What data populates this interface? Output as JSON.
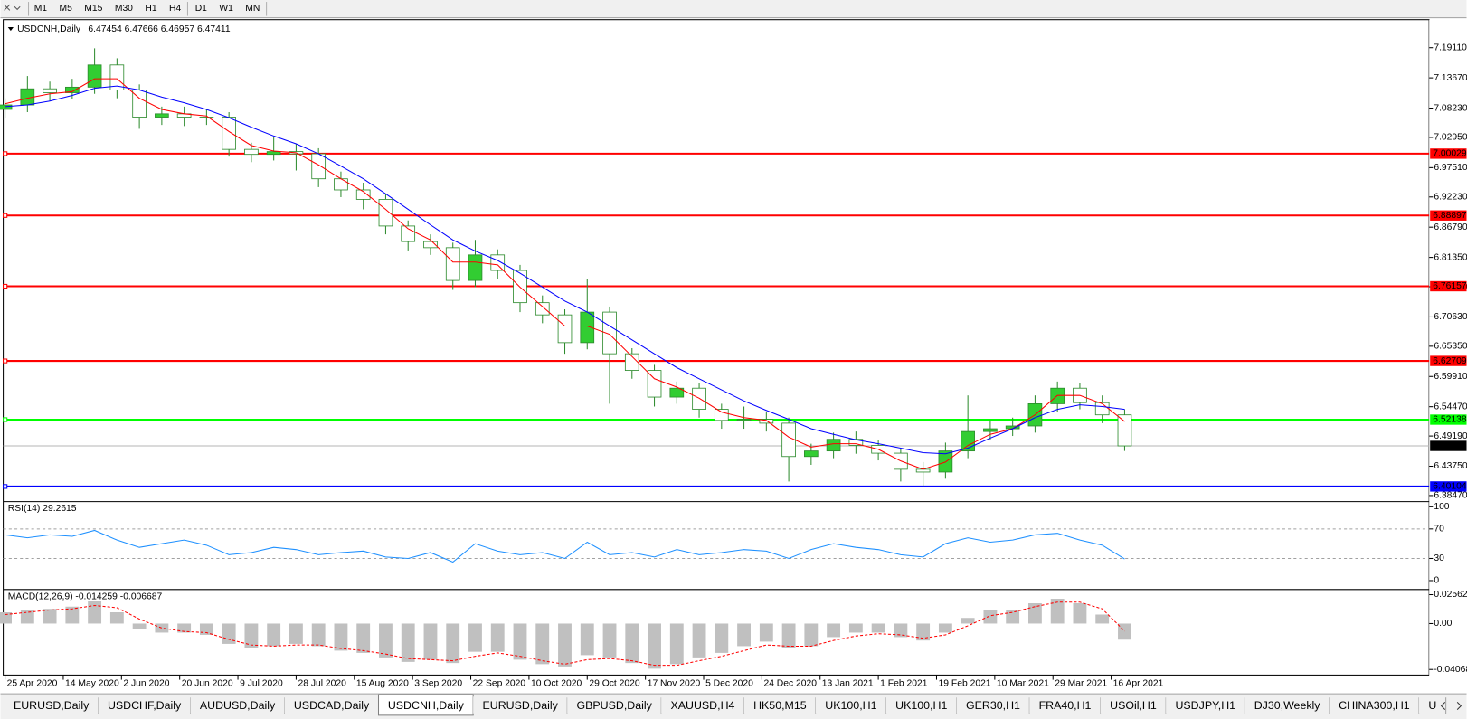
{
  "toolbar": {
    "timeframe_groups": [
      [
        "M1",
        "M5",
        "M15",
        "M30",
        "H1",
        "H4"
      ],
      [
        "D1",
        "W1",
        "MN"
      ]
    ]
  },
  "tabs": {
    "items": [
      "EURUSD,Daily",
      "USDCHF,Daily",
      "AUDUSD,Daily",
      "USDCAD,Daily",
      "USDCNH,Daily",
      "EURUSD,Daily",
      "GBPUSD,Daily",
      "XAUUSD,H4",
      "HK50,M15",
      "UK100,H1",
      "UK100,H1",
      "GER30,H1",
      "FRA40,H1",
      "USOil,H1",
      "USDJPY,H1",
      "DJ30,Weekly",
      "CHINA300,H1",
      "U"
    ],
    "active": 4
  },
  "chart_data": [
    {
      "type": "candlestick",
      "title": "USDCNH,Daily",
      "quote": "6.47454 6.47666 6.46957 6.47411",
      "x": [
        0,
        5,
        10,
        15,
        20,
        25,
        30,
        35,
        40,
        45,
        50,
        55,
        60,
        65,
        70,
        75,
        80,
        85,
        90,
        95,
        100,
        105,
        110,
        115,
        120,
        125,
        130,
        135,
        140,
        145,
        150,
        155,
        160,
        165,
        170,
        175,
        180,
        185,
        190,
        195,
        200,
        205,
        210,
        215,
        220,
        225,
        230,
        235,
        240,
        245,
        250
      ],
      "open": [
        7.08,
        7.088,
        7.117,
        7.11,
        7.12,
        7.16,
        7.115,
        7.066,
        7.072,
        7.066,
        7.066,
        7.008,
        6.999,
        7.004,
        7.0,
        6.955,
        6.935,
        6.918,
        6.87,
        6.842,
        6.831,
        6.772,
        6.818,
        6.79,
        6.732,
        6.71,
        6.66,
        6.715,
        6.64,
        6.61,
        6.562,
        6.578,
        6.54,
        6.52,
        6.522,
        6.515,
        6.455,
        6.465,
        6.486,
        6.475,
        6.461,
        6.432,
        6.427,
        6.465,
        6.5,
        6.505,
        6.51,
        6.55,
        6.578,
        6.552,
        6.53
      ],
      "high": [
        7.1,
        7.14,
        7.13,
        7.135,
        7.19,
        7.172,
        7.125,
        7.085,
        7.085,
        7.08,
        7.075,
        7.02,
        7.03,
        7.018,
        7.01,
        6.968,
        6.948,
        6.928,
        6.88,
        6.855,
        6.84,
        6.845,
        6.828,
        6.8,
        6.745,
        6.72,
        6.775,
        6.725,
        6.65,
        6.62,
        6.59,
        6.588,
        6.55,
        6.545,
        6.535,
        6.525,
        6.478,
        6.498,
        6.5,
        6.485,
        6.47,
        6.445,
        6.48,
        6.565,
        6.52,
        6.525,
        6.565,
        6.59,
        6.588,
        6.565,
        6.54
      ],
      "low": [
        7.065,
        7.075,
        7.095,
        7.098,
        7.108,
        7.1,
        7.045,
        7.052,
        7.05,
        7.052,
        6.995,
        6.985,
        6.988,
        6.97,
        6.94,
        6.922,
        6.9,
        6.855,
        6.826,
        6.818,
        6.755,
        6.76,
        6.775,
        6.715,
        6.695,
        6.64,
        6.648,
        6.55,
        6.595,
        6.545,
        6.55,
        6.525,
        6.505,
        6.505,
        6.5,
        6.41,
        6.44,
        6.452,
        6.46,
        6.448,
        6.41,
        6.4,
        6.415,
        6.452,
        6.485,
        6.492,
        6.498,
        6.535,
        6.54,
        6.515,
        6.465
      ],
      "close": [
        7.088,
        7.117,
        7.11,
        7.12,
        7.16,
        7.115,
        7.066,
        7.072,
        7.066,
        7.066,
        7.008,
        6.999,
        7.004,
        7.0,
        6.955,
        6.935,
        6.918,
        6.87,
        6.842,
        6.831,
        6.772,
        6.818,
        6.79,
        6.732,
        6.71,
        6.66,
        6.715,
        6.64,
        6.61,
        6.562,
        6.578,
        6.54,
        6.52,
        6.522,
        6.515,
        6.455,
        6.465,
        6.486,
        6.475,
        6.461,
        6.432,
        6.427,
        6.465,
        6.5,
        6.505,
        6.51,
        6.55,
        6.578,
        6.552,
        6.53,
        6.47411
      ],
      "up_color": "#32cd32",
      "down_color": "#ffffff",
      "wick_color": "#2e8b2e",
      "lines": [
        {
          "color": "#ff0000",
          "values": [
            7.09,
            7.1,
            7.108,
            7.112,
            7.135,
            7.135,
            7.1,
            7.08,
            7.072,
            7.068,
            7.04,
            7.015,
            7.005,
            7.002,
            6.98,
            6.955,
            6.932,
            6.9,
            6.865,
            6.845,
            6.805,
            6.805,
            6.8,
            6.76,
            6.725,
            6.69,
            6.69,
            6.675,
            6.635,
            6.595,
            6.58,
            6.56,
            6.535,
            6.525,
            6.52,
            6.49,
            6.472,
            6.478,
            6.478,
            6.468,
            6.447,
            6.432,
            6.445,
            6.475,
            6.495,
            6.505,
            6.53,
            6.565,
            6.565,
            6.55,
            6.518
          ]
        },
        {
          "color": "#0000ff",
          "values": [
            7.085,
            7.088,
            7.095,
            7.105,
            7.118,
            7.122,
            7.115,
            7.102,
            7.092,
            7.08,
            7.065,
            7.048,
            7.032,
            7.018,
            7.0,
            6.978,
            6.955,
            6.928,
            6.9,
            6.872,
            6.845,
            6.825,
            6.808,
            6.785,
            6.76,
            6.735,
            6.715,
            6.69,
            6.665,
            6.64,
            6.615,
            6.595,
            6.575,
            6.555,
            6.538,
            6.522,
            6.505,
            6.495,
            6.485,
            6.478,
            6.47,
            6.462,
            6.46,
            6.47,
            6.488,
            6.505,
            6.525,
            6.54,
            6.548,
            6.545,
            6.54
          ]
        }
      ],
      "levels": [
        {
          "value": 7.00029,
          "color": "#ff0000"
        },
        {
          "value": 6.88897,
          "color": "#ff0000"
        },
        {
          "value": 6.76157,
          "color": "#ff0000"
        },
        {
          "value": 6.62709,
          "color": "#ff0000"
        },
        {
          "value": 6.52138,
          "color": "#00ff00"
        },
        {
          "value": 6.40104,
          "color": "#0000ff"
        }
      ],
      "current": {
        "value": 6.47411,
        "color": "#000000",
        "line_color": "#b4b4b4"
      },
      "ylim": [
        6.3763,
        7.2399
      ],
      "yticks": [
        {
          "value": 7.1911,
          "label": "7.19110"
        },
        {
          "value": 7.1367,
          "label": "7.13670"
        },
        {
          "value": 7.0823,
          "label": "7.08230"
        },
        {
          "value": 7.0295,
          "label": "7.02950"
        },
        {
          "value": 6.9751,
          "label": "6.97510"
        },
        {
          "value": 6.9223,
          "label": "6.92230"
        },
        {
          "value": 6.8679,
          "label": "6.86790"
        },
        {
          "value": 6.8135,
          "label": "6.81350"
        },
        {
          "value": 6.7607,
          "label": "6.76070"
        },
        {
          "value": 6.7063,
          "label": "6.70630"
        },
        {
          "value": 6.6535,
          "label": "6.65350"
        },
        {
          "value": 6.5991,
          "label": "6.59910"
        },
        {
          "value": 6.5447,
          "label": "6.54470"
        },
        {
          "value": 6.4919,
          "label": "6.49190"
        },
        {
          "value": 6.4375,
          "label": "6.43750"
        },
        {
          "value": 6.3847,
          "label": "6.38470"
        }
      ],
      "xlim": [
        -0.4,
        318
      ],
      "xticks": [
        {
          "value": 0,
          "label": "25 Apr 2020"
        },
        {
          "value": 13,
          "label": "14 May 2020"
        },
        {
          "value": 26,
          "label": "2 Jun 2020"
        },
        {
          "value": 39,
          "label": "20 Jun 2020"
        },
        {
          "value": 52,
          "label": "9 Jul 2020"
        },
        {
          "value": 65,
          "label": "28 Jul 2020"
        },
        {
          "value": 78,
          "label": "15 Aug 2020"
        },
        {
          "value": 91,
          "label": "3 Sep 2020"
        },
        {
          "value": 104,
          "label": "22 Sep 2020"
        },
        {
          "value": 117,
          "label": "10 Oct 2020"
        },
        {
          "value": 130,
          "label": "29 Oct 2020"
        },
        {
          "value": 143,
          "label": "17 Nov 2020"
        },
        {
          "value": 156,
          "label": "5 Dec 2020"
        },
        {
          "value": 169,
          "label": "24 Dec 2020"
        },
        {
          "value": 182,
          "label": "13 Jan 2021"
        },
        {
          "value": 195,
          "label": "1 Feb 2021"
        },
        {
          "value": 208,
          "label": "19 Feb 2021"
        },
        {
          "value": 221,
          "label": "10 Mar 2021"
        },
        {
          "value": 234,
          "label": "29 Mar 2021"
        },
        {
          "value": 247,
          "label": "16 Apr 2021"
        }
      ]
    },
    {
      "type": "line",
      "title": "RSI(14) 29.2615",
      "color": "#1e90ff",
      "x": [
        0,
        5,
        10,
        15,
        20,
        25,
        30,
        35,
        40,
        45,
        50,
        55,
        60,
        65,
        70,
        75,
        80,
        85,
        90,
        95,
        100,
        105,
        110,
        115,
        120,
        125,
        130,
        135,
        140,
        145,
        150,
        155,
        160,
        165,
        170,
        175,
        180,
        185,
        190,
        195,
        200,
        205,
        210,
        215,
        220,
        225,
        230,
        235,
        240,
        245,
        250
      ],
      "values": [
        62,
        58,
        62,
        60,
        68,
        55,
        45,
        50,
        55,
        48,
        35,
        38,
        45,
        42,
        35,
        38,
        40,
        32,
        30,
        38,
        25,
        50,
        40,
        35,
        38,
        30,
        52,
        35,
        38,
        32,
        42,
        35,
        38,
        42,
        40,
        30,
        42,
        50,
        45,
        42,
        35,
        32,
        50,
        58,
        52,
        55,
        62,
        64,
        55,
        48,
        29.2615
      ],
      "levels": [
        70,
        30
      ],
      "level_color": "#a0a0a0",
      "xlim": [
        -0.4,
        318
      ],
      "ylim": [
        -8.9,
        105.1
      ],
      "yticks": [
        100,
        70,
        30,
        0
      ]
    },
    {
      "type": "bar",
      "title": "MACD(12,26,9) -0.014259 -0.006687",
      "color": "#c0c0c0",
      "x": [
        0,
        5,
        10,
        15,
        20,
        25,
        30,
        35,
        40,
        45,
        50,
        55,
        60,
        65,
        70,
        75,
        80,
        85,
        90,
        95,
        100,
        105,
        110,
        115,
        120,
        125,
        130,
        135,
        140,
        145,
        150,
        155,
        160,
        165,
        170,
        175,
        180,
        185,
        190,
        195,
        200,
        205,
        210,
        215,
        220,
        225,
        230,
        235,
        240,
        245,
        250
      ],
      "values": [
        0.01,
        0.012,
        0.013,
        0.015,
        0.02,
        0.01,
        -0.005,
        -0.008,
        -0.008,
        -0.01,
        -0.018,
        -0.022,
        -0.02,
        -0.018,
        -0.02,
        -0.024,
        -0.026,
        -0.03,
        -0.034,
        -0.032,
        -0.035,
        -0.025,
        -0.025,
        -0.032,
        -0.036,
        -0.038,
        -0.028,
        -0.03,
        -0.035,
        -0.04,
        -0.036,
        -0.03,
        -0.026,
        -0.02,
        -0.016,
        -0.022,
        -0.02,
        -0.012,
        -0.008,
        -0.008,
        -0.012,
        -0.015,
        -0.008,
        0.005,
        0.012,
        0.012,
        0.018,
        0.022,
        0.018,
        0.008,
        -0.014259
      ],
      "lines": [
        {
          "color": "#ff0000",
          "dashed": true,
          "values": [
            0.008,
            0.01,
            0.012,
            0.013,
            0.016,
            0.014,
            0.004,
            -0.004,
            -0.007,
            -0.008,
            -0.014,
            -0.019,
            -0.02,
            -0.019,
            -0.019,
            -0.022,
            -0.024,
            -0.027,
            -0.031,
            -0.032,
            -0.033,
            -0.029,
            -0.026,
            -0.029,
            -0.033,
            -0.036,
            -0.032,
            -0.031,
            -0.033,
            -0.037,
            -0.037,
            -0.033,
            -0.029,
            -0.024,
            -0.019,
            -0.02,
            -0.02,
            -0.015,
            -0.011,
            -0.009,
            -0.01,
            -0.013,
            -0.01,
            -0.002,
            0.007,
            0.01,
            0.015,
            0.019,
            0.019,
            0.013,
            -0.006687
          ]
        }
      ],
      "xlim": [
        -0.4,
        318
      ],
      "ylim": [
        -0.04565,
        0.02894
      ],
      "yticks": [
        0.025623,
        {
          "value": 0,
          "label": "0.00"
        },
        -0.04068
      ]
    }
  ]
}
